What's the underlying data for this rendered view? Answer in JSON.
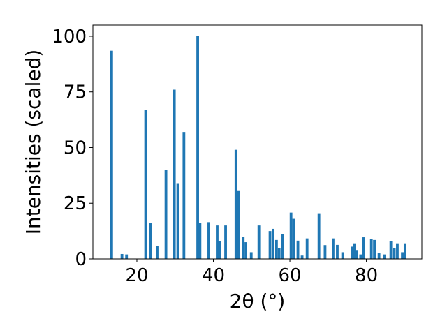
{
  "chart_data": {
    "type": "bar",
    "title": "",
    "xlabel": "2θ (°)",
    "ylabel": "Intensities (scaled)",
    "xlim": [
      8.5,
      94.5
    ],
    "ylim": [
      0,
      105
    ],
    "xticks": [
      20,
      40,
      60,
      80
    ],
    "yticks": [
      0,
      25,
      50,
      75,
      100
    ],
    "grid": false,
    "bar_color": "#1f77b4",
    "bar_width": 0.7,
    "x": [
      13.4,
      16.1,
      17.3,
      22.3,
      23.5,
      25.3,
      27.6,
      29.8,
      30.7,
      32.3,
      35.9,
      36.5,
      38.8,
      41.0,
      41.6,
      43.2,
      45.9,
      46.6,
      47.8,
      48.5,
      49.9,
      51.9,
      54.8,
      55.6,
      56.5,
      57.2,
      58.0,
      60.3,
      61.0,
      62.1,
      63.2,
      64.5,
      67.6,
      69.2,
      71.3,
      72.4,
      73.8,
      76.3,
      76.9,
      77.5,
      78.5,
      79.3,
      81.3,
      82.1,
      83.3,
      84.7,
      86.4,
      87.3,
      88.1,
      89.4,
      90.1
    ],
    "values": [
      93.5,
      2.2,
      2.0,
      67.0,
      16.2,
      5.8,
      40.0,
      76.0,
      34.0,
      57.0,
      100.0,
      16.0,
      16.5,
      15.0,
      8.0,
      15.0,
      49.0,
      30.8,
      9.8,
      7.5,
      3.0,
      15.0,
      12.5,
      13.5,
      8.5,
      5.0,
      11.0,
      20.8,
      18.0,
      8.2,
      1.5,
      9.2,
      20.5,
      6.2,
      9.2,
      6.3,
      3.0,
      5.5,
      7.0,
      4.0,
      2.0,
      9.7,
      9.0,
      8.5,
      2.5,
      2.0,
      8.0,
      5.0,
      7.0,
      3.0,
      7.0
    ]
  }
}
